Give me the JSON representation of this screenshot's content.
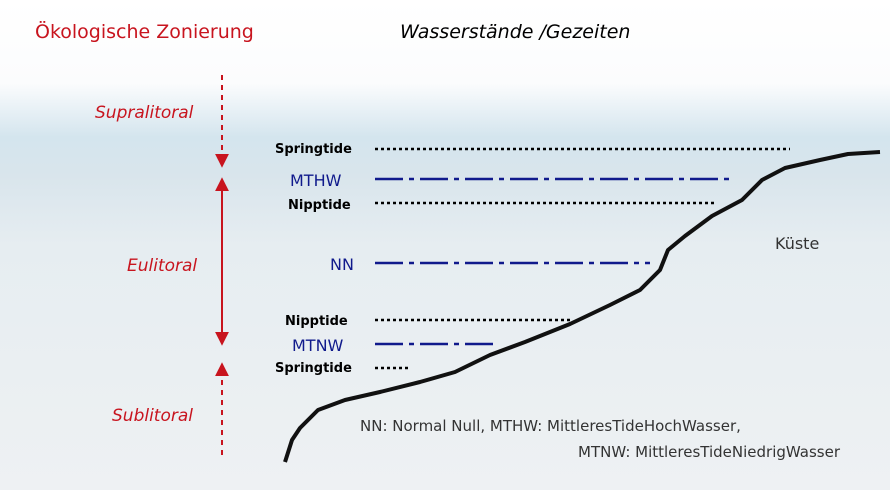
{
  "header": {
    "left_title": "Ökologische Zonierung",
    "right_title": "Wasserstände /Gezeiten"
  },
  "zones": [
    "Supralitoral",
    "Eulitoral",
    "Sublitoral"
  ],
  "levels": [
    "Springtide",
    "MTHW",
    "Nipptide",
    "NN",
    "Nipptide",
    "MTNW",
    "Springtide"
  ],
  "coast_label": "Küste",
  "legend": [
    "NN: Normal Null, MTHW: MittleresTideHochWasser,",
    "MTNW: MittleresTideNiedrigWasser"
  ]
}
